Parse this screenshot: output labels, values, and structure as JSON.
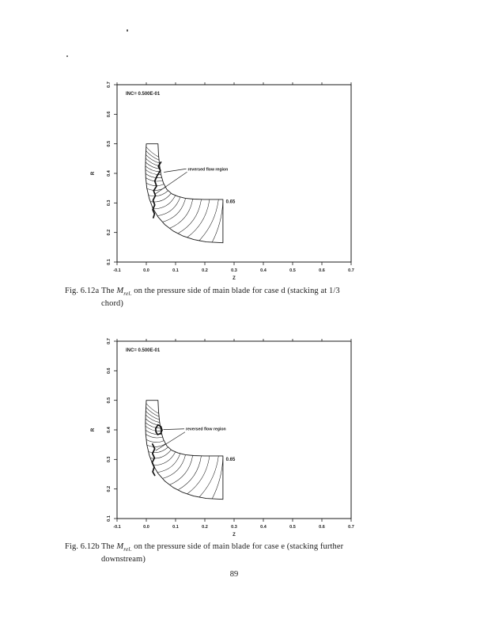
{
  "page": {
    "number": "89"
  },
  "figures": [
    {
      "plot": {
        "inc_label": "INC= 0.500E-01",
        "annotation": "reversed flow region",
        "contour_label": "0.65",
        "x_label": "Z",
        "y_label": "R",
        "x_ticks": [
          "-0.1",
          "0.0",
          "0.1",
          "0.2",
          "0.3",
          "0.4",
          "0.5",
          "0.6",
          "0.7"
        ],
        "y_ticks": [
          "0.1",
          "0.2",
          "0.3",
          "0.4",
          "0.5",
          "0.6",
          "0.7"
        ]
      },
      "caption": {
        "tag": "Fig. 6.12a",
        "pre": "The ",
        "var": "M",
        "sub": "rel.",
        "post": " on the pressure side of main blade for case d (stacking at 1/3",
        "line2": "chord)"
      }
    },
    {
      "plot": {
        "inc_label": "INC= 0.500E-01",
        "annotation": "reversed flow region",
        "contour_label": "0.65",
        "x_label": "Z",
        "y_label": "R",
        "x_ticks": [
          "-0.1",
          "0.0",
          "0.1",
          "0.2",
          "0.3",
          "0.4",
          "0.5",
          "0.6",
          "0.7"
        ],
        "y_ticks": [
          "0.1",
          "0.2",
          "0.3",
          "0.4",
          "0.5",
          "0.6",
          "0.7"
        ]
      },
      "caption": {
        "tag": "Fig. 6.12b",
        "pre": "The ",
        "var": "M",
        "sub": "rel.",
        "post": " on the pressure side of main blade for case e (stacking further",
        "line2": "downstream)"
      }
    }
  ],
  "chart_data": [
    {
      "type": "heatmap",
      "subtype": "contour",
      "title": "Fig. 6.12a The Mrel. on the pressure side of main blade for case d (stacking at 1/3 chord)",
      "xlabel": "Z",
      "ylabel": "R",
      "xlim": [
        -0.1,
        0.7
      ],
      "ylim": [
        0.1,
        0.7
      ],
      "x_ticks": [
        -0.1,
        0.0,
        0.1,
        0.2,
        0.3,
        0.4,
        0.5,
        0.6,
        0.7
      ],
      "y_ticks": [
        0.1,
        0.2,
        0.3,
        0.4,
        0.5,
        0.6,
        0.7
      ],
      "contour_increment": 0.05,
      "increment_label": "INC= 0.500E-01",
      "labeled_levels": [
        0.65
      ],
      "annotations": [
        "reversed flow region"
      ],
      "grid": false,
      "legend": false,
      "region": "curved meridional blade passage from (Z=0.0,R=0.5) bending to (Z=0.26,R=0.17-0.31), dense contours near leading edge, thick jagged contour marks reversed flow boundary"
    },
    {
      "type": "heatmap",
      "subtype": "contour",
      "title": "Fig. 6.12b The Mrel. on the pressure side of main blade for case e (stacking further downstream)",
      "xlabel": "Z",
      "ylabel": "R",
      "xlim": [
        -0.1,
        0.7
      ],
      "ylim": [
        0.1,
        0.7
      ],
      "x_ticks": [
        -0.1,
        0.0,
        0.1,
        0.2,
        0.3,
        0.4,
        0.5,
        0.6,
        0.7
      ],
      "y_ticks": [
        0.1,
        0.2,
        0.3,
        0.4,
        0.5,
        0.6,
        0.7
      ],
      "contour_increment": 0.05,
      "increment_label": "INC= 0.500E-01",
      "labeled_levels": [
        0.65
      ],
      "annotations": [
        "reversed flow region"
      ],
      "grid": false,
      "legend": false,
      "region": "same passage as 6.12a; reversed flow region shown as small thick closed loop near (Z=0.04,R=0.40) plus thick jagged contour below"
    }
  ]
}
